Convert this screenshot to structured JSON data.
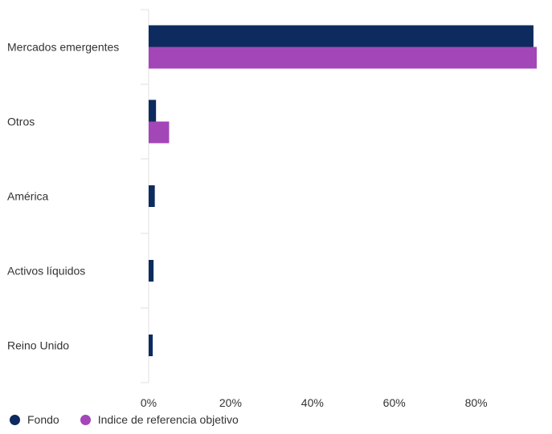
{
  "chart_data": {
    "type": "bar",
    "orientation": "horizontal",
    "categories": [
      "Mercados emergentes",
      "Otros",
      "América",
      "Activos líquidos",
      "Reino Unido"
    ],
    "series": [
      {
        "name": "Fondo",
        "color": "#0d2b5e",
        "values": [
          94.0,
          1.8,
          1.5,
          1.2,
          1.0
        ]
      },
      {
        "name": "Indice de referencia objetivo",
        "color": "#a346b8",
        "values": [
          94.8,
          5.0,
          0,
          0,
          0
        ]
      }
    ],
    "xlim": [
      0,
      94.8
    ],
    "xticks": [
      0,
      20,
      40,
      60,
      80
    ],
    "tick_format": "{v}%",
    "grid": false,
    "legend_position": "bottom-left"
  }
}
